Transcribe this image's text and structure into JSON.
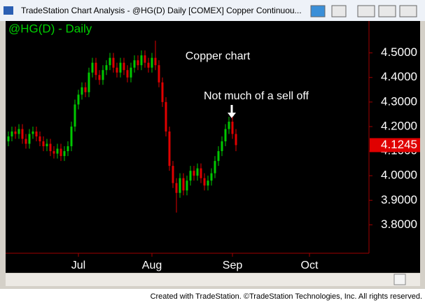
{
  "window_title": "TradeStation Chart Analysis - @HG(D) Daily [COMEX] Copper Continuou...",
  "footer": "Created with TradeStation. ©TradeStation Technologies, Inc. All rights reserved.",
  "chart_data": {
    "type": "candlestick",
    "title": "@HG(D) - Daily",
    "annotations": [
      "Copper chart",
      "Not much of a sell off"
    ],
    "x": [
      0,
      1,
      2,
      3,
      4,
      5,
      6,
      7,
      8,
      9,
      10,
      11,
      12,
      13,
      14,
      15,
      16,
      17,
      18,
      19,
      20,
      21,
      22,
      23,
      24,
      25,
      26,
      27,
      28,
      29,
      30,
      31,
      32,
      33,
      34,
      35,
      36,
      37,
      38,
      39,
      40,
      41,
      42,
      43,
      44,
      45,
      46,
      47,
      48,
      49,
      50,
      51,
      52,
      53,
      54,
      55,
      56,
      57,
      58,
      59,
      60,
      61,
      62,
      63,
      64,
      65
    ],
    "open": [
      4.14,
      4.16,
      4.18,
      4.17,
      4.19,
      4.15,
      4.13,
      4.17,
      4.18,
      4.16,
      4.14,
      4.12,
      4.13,
      4.1,
      4.09,
      4.11,
      4.08,
      4.1,
      4.12,
      4.2,
      4.29,
      4.33,
      4.36,
      4.34,
      4.42,
      4.46,
      4.41,
      4.39,
      4.43,
      4.45,
      4.48,
      4.44,
      4.42,
      4.46,
      4.43,
      4.4,
      4.44,
      4.47,
      4.45,
      4.49,
      4.46,
      4.44,
      4.48,
      4.45,
      4.38,
      4.3,
      4.18,
      4.04,
      3.97,
      3.93,
      3.99,
      3.94,
      3.98,
      4.02,
      4.0,
      4.03,
      3.99,
      3.96,
      3.98,
      4.01,
      4.06,
      4.1,
      4.14,
      4.19,
      4.22,
      4.17
    ],
    "high": [
      4.18,
      4.2,
      4.2,
      4.21,
      4.21,
      4.17,
      4.19,
      4.2,
      4.2,
      4.18,
      4.16,
      4.15,
      4.15,
      4.12,
      4.13,
      4.13,
      4.12,
      4.14,
      4.22,
      4.31,
      4.35,
      4.38,
      4.38,
      4.44,
      4.48,
      4.48,
      4.43,
      4.45,
      4.47,
      4.5,
      4.5,
      4.46,
      4.48,
      4.48,
      4.45,
      4.46,
      4.49,
      4.49,
      4.51,
      4.51,
      4.48,
      4.5,
      4.55,
      4.47,
      4.4,
      4.32,
      4.2,
      4.06,
      3.99,
      4.01,
      4.01,
      4.0,
      4.04,
      4.04,
      4.05,
      4.05,
      4.01,
      4.0,
      4.03,
      4.08,
      4.12,
      4.16,
      4.21,
      4.24,
      4.24,
      4.19
    ],
    "low": [
      4.12,
      4.14,
      4.15,
      4.15,
      4.13,
      4.11,
      4.11,
      4.15,
      4.14,
      4.12,
      4.1,
      4.1,
      4.08,
      4.07,
      4.07,
      4.06,
      4.06,
      4.08,
      4.1,
      4.18,
      4.27,
      4.31,
      4.32,
      4.32,
      4.4,
      4.39,
      4.37,
      4.37,
      4.41,
      4.43,
      4.42,
      4.4,
      4.4,
      4.41,
      4.38,
      4.38,
      4.42,
      4.43,
      4.43,
      4.44,
      4.42,
      4.42,
      4.43,
      4.36,
      4.28,
      4.16,
      4.02,
      3.95,
      3.85,
      3.91,
      3.92,
      3.92,
      3.96,
      3.98,
      3.98,
      3.97,
      3.94,
      3.94,
      3.96,
      3.99,
      4.04,
      4.08,
      4.12,
      4.17,
      4.15,
      4.1
    ],
    "close": [
      4.16,
      4.18,
      4.17,
      4.19,
      4.15,
      4.13,
      4.17,
      4.18,
      4.16,
      4.14,
      4.12,
      4.13,
      4.1,
      4.09,
      4.11,
      4.08,
      4.1,
      4.12,
      4.2,
      4.29,
      4.33,
      4.36,
      4.34,
      4.42,
      4.46,
      4.41,
      4.39,
      4.43,
      4.45,
      4.48,
      4.44,
      4.42,
      4.46,
      4.43,
      4.4,
      4.44,
      4.47,
      4.45,
      4.49,
      4.46,
      4.44,
      4.48,
      4.45,
      4.38,
      4.3,
      4.18,
      4.04,
      3.97,
      3.93,
      3.99,
      3.94,
      3.98,
      4.02,
      4.0,
      4.03,
      3.99,
      3.96,
      3.98,
      4.01,
      4.06,
      4.1,
      4.14,
      4.19,
      4.22,
      4.17,
      4.1245
    ],
    "last_price": 4.1245,
    "up_color": "#00c800",
    "down_color": "#e00000",
    "xlim": [
      -0.8,
      103
    ],
    "xticks": [
      {
        "value": 20,
        "label": "Jul"
      },
      {
        "value": 41,
        "label": "Aug"
      },
      {
        "value": 64,
        "label": "Sep"
      },
      {
        "value": 86,
        "label": "Oct"
      }
    ],
    "ylim": [
      3.69,
      4.63
    ],
    "yticks": [
      {
        "value": 4.5,
        "label": "4.5000"
      },
      {
        "value": 4.4,
        "label": "4.4000"
      },
      {
        "value": 4.3,
        "label": "4.3000"
      },
      {
        "value": 4.2,
        "label": "4.2000"
      },
      {
        "value": 4.1,
        "label": "4.1000"
      },
      {
        "value": 4.0,
        "label": "4.0000"
      },
      {
        "value": 3.9,
        "label": "3.9000"
      },
      {
        "value": 3.8,
        "label": "3.8000"
      }
    ]
  }
}
